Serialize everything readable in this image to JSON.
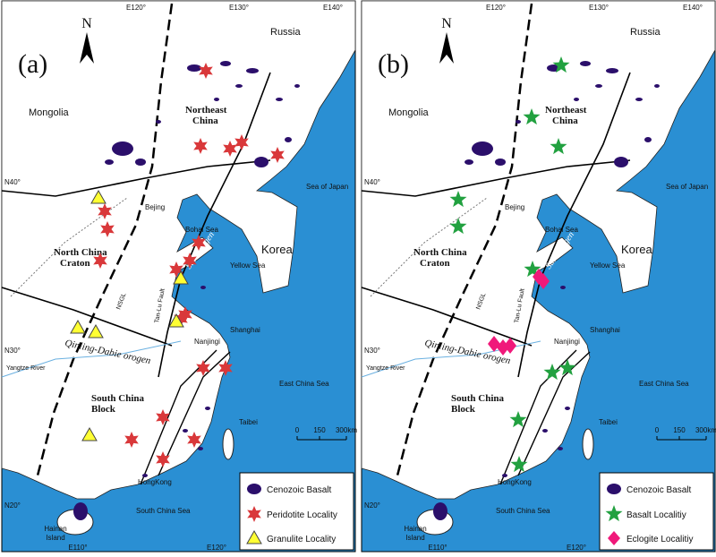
{
  "panels": [
    {
      "label": "(a)",
      "legend": [
        "Cenozoic Basalt",
        "Peridotite Locality",
        "Granulite Locality"
      ]
    },
    {
      "label": "(b)",
      "legend": [
        "Cenozoic Basalt",
        "Basalt Localitiy",
        "Eclogite Localitiy"
      ]
    }
  ],
  "north": "N",
  "lon_top": [
    "E120°",
    "E130°",
    "E140°"
  ],
  "lon_bottom": [
    "E110°",
    "E120°"
  ],
  "lat": [
    "N40°",
    "N30°",
    "N20°"
  ],
  "map_labels": {
    "russia": "Russia",
    "mongolia": "Mongolia",
    "northeast": "Northeast",
    "china": "China",
    "sea_of_japan": "Sea of Japan",
    "bejing": "Bejing",
    "bohai": "Bohai Sea",
    "korea": "Korea",
    "north_china": "North China",
    "craton": "Craton",
    "yellow_sea": "Yellow Sea",
    "sulu": "Sulu orogen",
    "nsgl": "NSGL",
    "tanlu": "Tan-Lu Fault",
    "qinling": "Qinling-Dabie orogen",
    "shanghai": "Shanghai",
    "nanjing": "Nanjingi",
    "yangtze": "Yangtze River",
    "east_china_sea": "East China Sea",
    "south_china": "South China",
    "block": "Block",
    "taibei": "Taibei",
    "hongkong": "HongKong",
    "south_china_sea": "South China Sea",
    "hainan": "Hainan",
    "island": "Island"
  },
  "scale_bar": [
    "0",
    "150",
    "300km"
  ]
}
